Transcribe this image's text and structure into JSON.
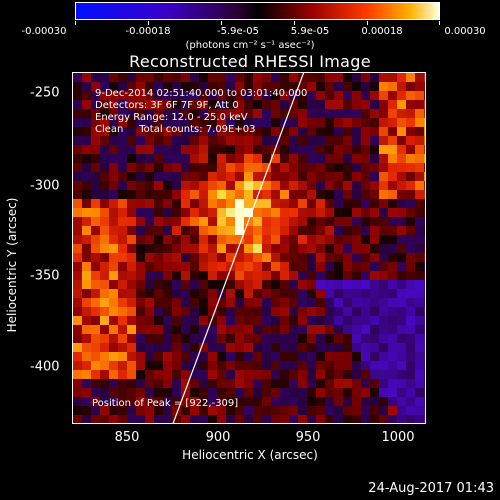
{
  "colorbar": {
    "labels": [
      "-0.00030",
      "-0.00018",
      "-5.9e-05",
      "5.9e-05",
      "0.00018",
      "0.00030"
    ],
    "units": "(photons cm⁻² s⁻¹ asec⁻²)"
  },
  "title": "Reconstructed RHESSI Image",
  "info": {
    "time": "9-Dec-2014 02:51:40.000 to 03:01:40.000",
    "detectors": "Detectors: 3F 6F 7F 9F, Att 0",
    "energy": "Energy Range: 12.0 - 25.0 keV",
    "clean": "Clean     Total counts: 7.09E+03"
  },
  "peak_label": "Position of Peak = [922,-309]",
  "x_axis": {
    "label": "Heliocentric X (arcsec)",
    "ticks": [
      "850",
      "900",
      "950",
      "1000"
    ]
  },
  "y_axis": {
    "label": "Heliocentric Y (arcsec)",
    "ticks": [
      "-250",
      "-300",
      "-350",
      "-400"
    ]
  },
  "footer_date": "24-Aug-2017 01:43"
}
